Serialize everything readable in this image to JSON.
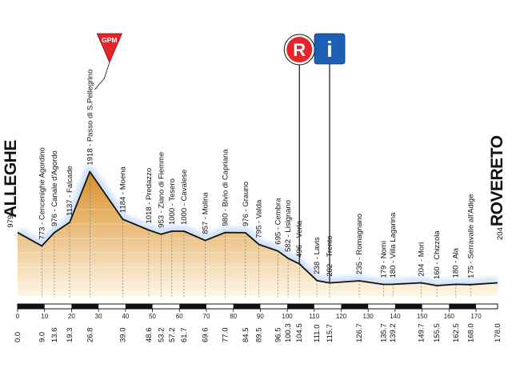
{
  "chart_data": {
    "type": "area",
    "start_label": "ALLEGHE",
    "start_altitude": "979",
    "finish_label": "ROVERETO",
    "finish_altitude": "204",
    "km_ticks": [
      "0",
      "10",
      "20",
      "30",
      "40",
      "50",
      "60",
      "70",
      "80",
      "90",
      "100",
      "110",
      "120",
      "130",
      "140",
      "150",
      "160",
      "170"
    ],
    "xlim": [
      0,
      178
    ],
    "ylim": [
      0,
      2300
    ],
    "points": [
      {
        "km": 0.0,
        "alt": 979,
        "label": "979 - ALLEGHE",
        "dist": "0.0"
      },
      {
        "km": 9.0,
        "alt": 773,
        "label": "773 - Cencenighe Agordino",
        "dist": "9.0"
      },
      {
        "km": 13.6,
        "alt": 976,
        "label": "976 - Canale d'Agordo",
        "dist": "13.6"
      },
      {
        "km": 19.3,
        "alt": 1137,
        "label": "1137 - Falcade",
        "dist": "19.3"
      },
      {
        "km": 26.8,
        "alt": 1918,
        "label": "1918 - Passo di S.Pellegrino",
        "dist": "26.8"
      },
      {
        "km": 39.0,
        "alt": 1184,
        "label": "1184 - Moena",
        "dist": "39.0"
      },
      {
        "km": 48.6,
        "alt": 1018,
        "label": "1018 - Predazzo",
        "dist": "48.6"
      },
      {
        "km": 53.2,
        "alt": 953,
        "label": "953 - Ziano di Fiemme",
        "dist": "53.2"
      },
      {
        "km": 57.2,
        "alt": 1000,
        "label": "1000 - Tesero",
        "dist": "57.2"
      },
      {
        "km": 61.7,
        "alt": 1000,
        "label": "1000 - Cavalese",
        "dist": "61.7"
      },
      {
        "km": 69.6,
        "alt": 857,
        "label": "857 - Molina",
        "dist": "69.6"
      },
      {
        "km": 77.0,
        "alt": 980,
        "label": "980 - Bivio di Capriana",
        "dist": "77.0"
      },
      {
        "km": 84.5,
        "alt": 976,
        "label": "976 - Grauno",
        "dist": "84.5"
      },
      {
        "km": 89.5,
        "alt": 795,
        "label": "795 - Valda",
        "dist": "89.5"
      },
      {
        "km": 96.5,
        "alt": 695,
        "label": "695 - Cembra",
        "dist": "96.5"
      },
      {
        "km": 100.3,
        "alt": 582,
        "label": "582 - Lisignano",
        "dist": "100.3"
      },
      {
        "km": 104.5,
        "alt": 496,
        "label": "496 - Verla",
        "dist": "104.5"
      },
      {
        "km": 111.0,
        "alt": 238,
        "label": "238 - Lavis",
        "dist": "111.0"
      },
      {
        "km": 115.7,
        "alt": 202,
        "label": "202 - Trento",
        "dist": "115.7"
      },
      {
        "km": 126.7,
        "alt": 235,
        "label": "235 - Romagnano",
        "dist": "126.7"
      },
      {
        "km": 135.7,
        "alt": 179,
        "label": "179 - Nomi",
        "dist": "135.7"
      },
      {
        "km": 139.2,
        "alt": 180,
        "label": "180 - Villa Lagarina",
        "dist": "139.2"
      },
      {
        "km": 149.7,
        "alt": 204,
        "label": "204 - Mori",
        "dist": "149.7"
      },
      {
        "km": 155.5,
        "alt": 160,
        "label": "160 - Chizzola",
        "dist": "155.5"
      },
      {
        "km": 162.5,
        "alt": 180,
        "label": "180 - Ala",
        "dist": "162.5"
      },
      {
        "km": 168.0,
        "alt": 175,
        "label": "175 - Serravalle all'Adige",
        "dist": "168.0"
      },
      {
        "km": 178.0,
        "alt": 204,
        "label": "204 - ROVERETO",
        "dist": "178.0"
      }
    ],
    "markers": [
      {
        "type": "climb",
        "text": "GPM",
        "km": 26.8,
        "color": "#e8242a"
      },
      {
        "type": "refreshment",
        "text": "R",
        "km": 104.5,
        "color": "#e8242a"
      },
      {
        "type": "information",
        "text": "i",
        "km": 115.7,
        "color": "#1c5fb4"
      }
    ],
    "colors": {
      "fill_top": "#d88d26",
      "fill_bottom": "#fdf6e4",
      "outline": "#111111",
      "glow": "#cfe1f8"
    }
  }
}
